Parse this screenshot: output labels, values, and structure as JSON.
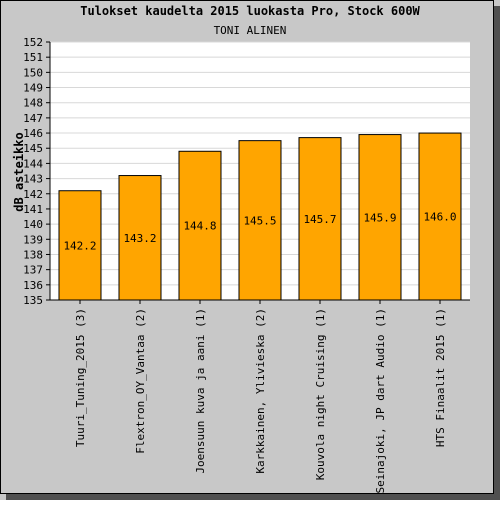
{
  "chart_data": {
    "type": "bar",
    "title": "Tulokset kaudelta 2015 luokasta Pro, Stock 600W",
    "subtitle": "TONI ALINEN",
    "ylabel": "dB asteikko",
    "xlabel": "",
    "categories": [
      "Tuuri_Tuning_2015 (3)",
      "Flextron_OY_Vantaa (2)",
      "Joensuun kuva ja aani (1)",
      "Karkkainen, Ylivieska (2)",
      "Kouvola night Cruising (1)",
      "Seinajoki, JP dart Audio (1)",
      "HTS Finaalit 2015 (1)"
    ],
    "values": [
      142.2,
      143.2,
      144.8,
      145.5,
      145.7,
      145.9,
      146.0
    ],
    "value_labels": [
      "142.2",
      "143.2",
      "144.8",
      "145.5",
      "145.7",
      "145.9",
      "146.0"
    ],
    "ylim": [
      135,
      152
    ],
    "yticks": [
      135,
      136,
      137,
      138,
      139,
      140,
      141,
      142,
      143,
      144,
      145,
      146,
      147,
      148,
      149,
      150,
      151,
      152
    ],
    "grid": true,
    "legend": "none",
    "colors": {
      "bar": "#ffa500",
      "bar_stroke": "#000000",
      "frame_bg": "#c8c8c8",
      "plot_bg": "#ffffff",
      "grid": "#d8d8d8"
    }
  }
}
